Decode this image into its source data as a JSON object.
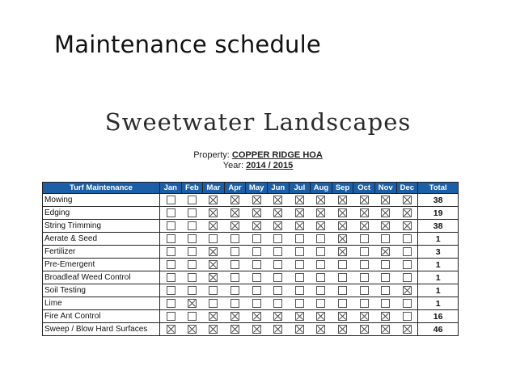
{
  "slide": {
    "title": "Maintenance schedule"
  },
  "document": {
    "company": "Sweetwater Landscapes",
    "property_label": "Property:",
    "property_value": "COPPER RIDGE HOA",
    "year_label": "Year:",
    "year_value": "2014 / 2015"
  },
  "table": {
    "header_item": "Turf Maintenance",
    "months": [
      "Jan",
      "Feb",
      "Mar",
      "Apr",
      "May",
      "Jun",
      "Jul",
      "Aug",
      "Sep",
      "Oct",
      "Nov",
      "Dec"
    ],
    "header_total": "Total",
    "rows": [
      {
        "name": "Mowing",
        "checks": [
          false,
          false,
          true,
          true,
          true,
          true,
          true,
          true,
          true,
          true,
          true,
          true
        ],
        "total": "38"
      },
      {
        "name": "Edging",
        "checks": [
          false,
          false,
          true,
          true,
          true,
          true,
          true,
          true,
          true,
          true,
          true,
          true
        ],
        "total": "19"
      },
      {
        "name": "String Trimming",
        "checks": [
          false,
          false,
          true,
          true,
          true,
          true,
          true,
          true,
          true,
          true,
          true,
          true
        ],
        "total": "38"
      },
      {
        "name": "Aerate & Seed",
        "checks": [
          false,
          false,
          false,
          false,
          false,
          false,
          false,
          false,
          true,
          false,
          false,
          false
        ],
        "total": "1"
      },
      {
        "name": "Fertilizer",
        "checks": [
          false,
          false,
          true,
          false,
          false,
          false,
          false,
          false,
          true,
          false,
          true,
          false
        ],
        "total": "3"
      },
      {
        "name": "Pre-Emergent",
        "checks": [
          false,
          false,
          true,
          false,
          false,
          false,
          false,
          false,
          false,
          false,
          false,
          false
        ],
        "total": "1"
      },
      {
        "name": "Broadleaf Weed Control",
        "checks": [
          false,
          false,
          true,
          false,
          false,
          false,
          false,
          false,
          false,
          false,
          false,
          false
        ],
        "total": "1"
      },
      {
        "name": "Soil Testing",
        "checks": [
          false,
          false,
          false,
          false,
          false,
          false,
          false,
          false,
          false,
          false,
          false,
          true
        ],
        "total": "1"
      },
      {
        "name": "Lime",
        "checks": [
          false,
          true,
          false,
          false,
          false,
          false,
          false,
          false,
          false,
          false,
          false,
          false
        ],
        "total": "1"
      },
      {
        "name": "Fire Ant Control",
        "checks": [
          false,
          false,
          true,
          true,
          true,
          true,
          true,
          true,
          true,
          true,
          true,
          false
        ],
        "total": "16"
      },
      {
        "name": "Sweep / Blow Hard Surfaces",
        "checks": [
          true,
          true,
          true,
          true,
          true,
          true,
          true,
          true,
          true,
          true,
          true,
          true
        ],
        "total": "46"
      }
    ]
  }
}
